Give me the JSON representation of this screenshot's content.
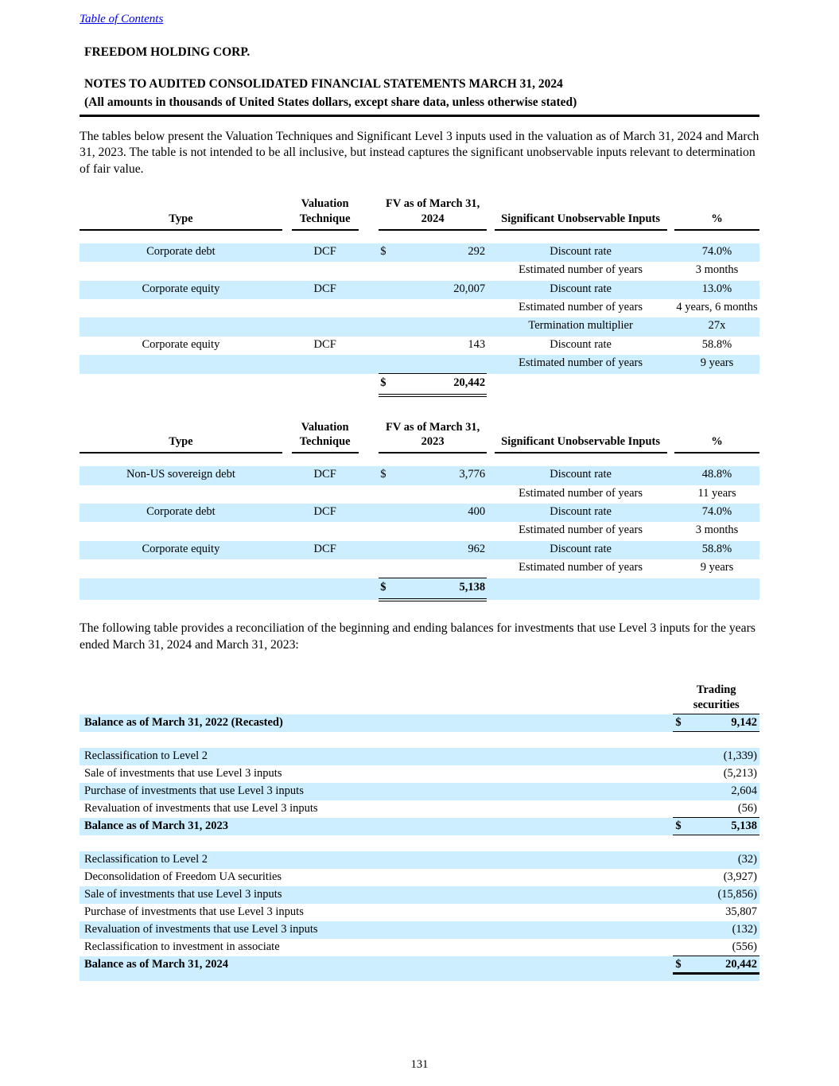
{
  "page": {
    "toc_link": "Table of Contents",
    "company": "FREEDOM HOLDING CORP.",
    "title_line1": "NOTES TO AUDITED CONSOLIDATED FINANCIAL STATEMENTS MARCH 31, 2024",
    "title_line2": "(All amounts in thousands of United States dollars, except share data, unless otherwise stated)",
    "intro_paragraph": "The tables below present the Valuation Techniques and Significant Level 3 inputs used in the valuation as of March 31, 2024 and March 31, 2023. The table is not intended to be all inclusive, but instead captures the significant unobservable inputs relevant to determination of fair value.",
    "reconciliation_paragraph": "The following table provides a reconciliation of the beginning and ending balances for investments that use Level 3 inputs for the years ended March 31, 2024 and March 31, 2023:",
    "page_number": "131"
  },
  "colors": {
    "row_highlight": "#CCEEFF",
    "link": "#0000EE"
  },
  "valuation_table_2024": {
    "headers": {
      "type": "Type",
      "technique": "Valuation Technique",
      "fv": "FV as of March 31, 2024",
      "inputs": "Significant Unobservable Inputs",
      "pct": "%"
    },
    "rows": [
      {
        "spacer": true
      },
      {
        "shade": true,
        "type": "Corporate debt",
        "technique": "DCF",
        "currency": "$",
        "fv": "292",
        "input": "Discount rate",
        "pct": "74.0%"
      },
      {
        "input": "Estimated number of years",
        "pct": "3 months"
      },
      {
        "shade": true,
        "type": "Corporate equity",
        "technique": "DCF",
        "fv": "20,007",
        "input": "Discount rate",
        "pct": "13.0%"
      },
      {
        "input": "Estimated number of years",
        "pct": "4 years, 6 months"
      },
      {
        "shade": true,
        "input": "Termination multiplier",
        "pct": "27x"
      },
      {
        "type": "Corporate equity",
        "technique": "DCF",
        "fv": "143",
        "input": "Discount rate",
        "pct": "58.8%"
      },
      {
        "shade": true,
        "input": "Estimated number of years",
        "pct": "9 years"
      }
    ],
    "total": {
      "currency": "$",
      "value": "20,442",
      "shade": false
    }
  },
  "valuation_table_2023": {
    "headers": {
      "type": "Type",
      "technique": "Valuation Technique",
      "fv": "FV as of March 31, 2023",
      "inputs": "Significant Unobservable Inputs",
      "pct": "%"
    },
    "rows": [
      {
        "spacer": true
      },
      {
        "shade": true,
        "type": "Non-US sovereign debt",
        "technique": "DCF",
        "currency": "$",
        "fv": "3,776",
        "input": "Discount rate",
        "pct": "48.8%"
      },
      {
        "input": "Estimated number of years",
        "pct": "11 years"
      },
      {
        "shade": true,
        "type": "Corporate debt",
        "technique": "DCF",
        "fv": "400",
        "input": "Discount rate",
        "pct": "74.0%"
      },
      {
        "input": "Estimated number of years",
        "pct": "3 months"
      },
      {
        "shade": true,
        "type": "Corporate equity",
        "technique": "DCF",
        "fv": "962",
        "input": "Discount rate",
        "pct": "58.8%"
      },
      {
        "input": "Estimated number of years",
        "pct": "9 years"
      }
    ],
    "total": {
      "currency": "$",
      "value": "5,138",
      "shade": true
    }
  },
  "reconciliation_table": {
    "column_header": "Trading securities",
    "rows": [
      {
        "shade": true,
        "bold": true,
        "label": "Balance as of March 31, 2022 (Recasted)",
        "currency": "$",
        "value": "9,142",
        "border": "bottom"
      },
      {
        "spacer": true
      },
      {
        "shade": true,
        "label": "Reclassification to Level 2",
        "value": "(1,339)"
      },
      {
        "label": "Sale of investments that use Level 3 inputs",
        "value": "(5,213)"
      },
      {
        "shade": true,
        "label": "Purchase of investments that use Level 3 inputs",
        "value": "2,604"
      },
      {
        "label": "Revaluation of investments that use Level 3 inputs",
        "value": "(56)",
        "border": "bottom"
      },
      {
        "shade": true,
        "bold": true,
        "label": "Balance as of March 31, 2023",
        "currency": "$",
        "value": "5,138",
        "border": "bottom"
      },
      {
        "spacer": true
      },
      {
        "shade": true,
        "label": "Reclassification to Level 2",
        "value": "(32)"
      },
      {
        "label": "Deconsolidation of Freedom UA securities",
        "value": "(3,927)"
      },
      {
        "shade": true,
        "label": "Sale of investments that use Level 3 inputs",
        "value": "(15,856)"
      },
      {
        "label": "Purchase of investments that use Level 3 inputs",
        "value": "35,807"
      },
      {
        "shade": true,
        "label": "Revaluation of investments that use Level 3 inputs",
        "value": "(132)"
      },
      {
        "label": "Reclassification to investment in associate",
        "value": "(556)",
        "border": "bottom"
      },
      {
        "shade": true,
        "bold": true,
        "label": "Balance as of March 31, 2024",
        "currency": "$",
        "value": "20,442",
        "border": "bottom-thick"
      },
      {
        "spacer": true,
        "shade": true,
        "thin": true
      }
    ]
  }
}
